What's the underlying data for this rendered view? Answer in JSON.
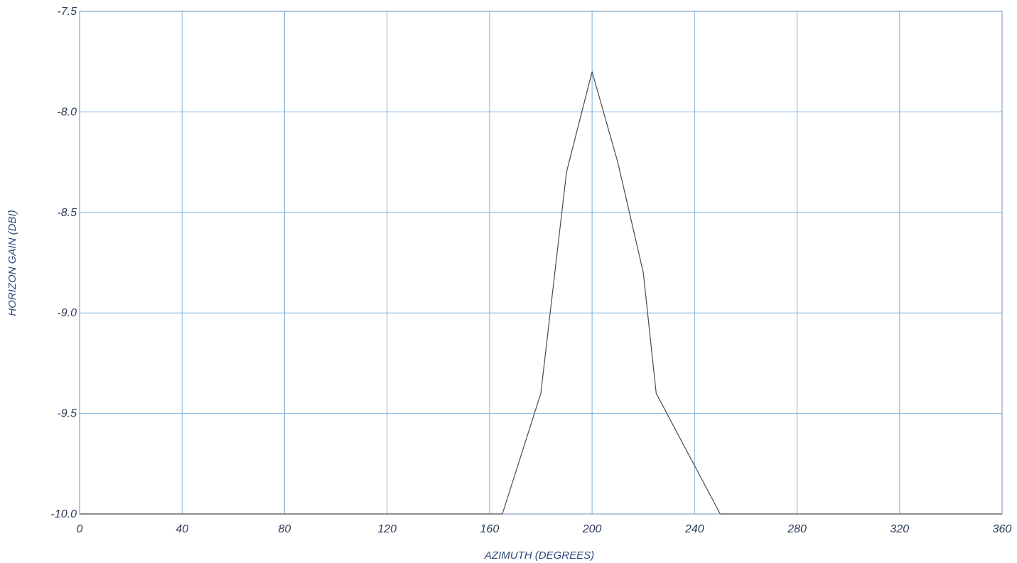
{
  "chart_data": {
    "type": "line",
    "title": "",
    "xlabel": "AZIMUTH (DEGREES)",
    "ylabel": "HORIZON GAIN (DBI)",
    "xlim": [
      0,
      360
    ],
    "ylim": [
      -10.0,
      -7.5
    ],
    "x_ticks": [
      0,
      40,
      80,
      120,
      160,
      200,
      240,
      280,
      320,
      360
    ],
    "x_tick_labels": [
      "0",
      "40",
      "80",
      "120",
      "160",
      "200",
      "240",
      "280",
      "320",
      "360"
    ],
    "y_ticks": [
      -7.5,
      -8.0,
      -8.5,
      -9.0,
      -9.5,
      -10.0
    ],
    "y_tick_labels": [
      "-7.5",
      "-8.0",
      "-8.5",
      "-9.0",
      "-9.5",
      "-10.0"
    ],
    "grid": true,
    "legend": false,
    "series": [
      {
        "x": [
          0,
          165,
          180,
          190,
          200,
          210,
          220,
          225,
          250,
          360
        ],
        "y": [
          -10.0,
          -10.0,
          -9.4,
          -8.3,
          -7.8,
          -8.25,
          -8.8,
          -9.4,
          -10.0,
          -10.0
        ]
      }
    ],
    "colors": {
      "grid": "#7fb0dc",
      "line": "#4a4a4a",
      "frame": "#6a8fc0"
    }
  }
}
